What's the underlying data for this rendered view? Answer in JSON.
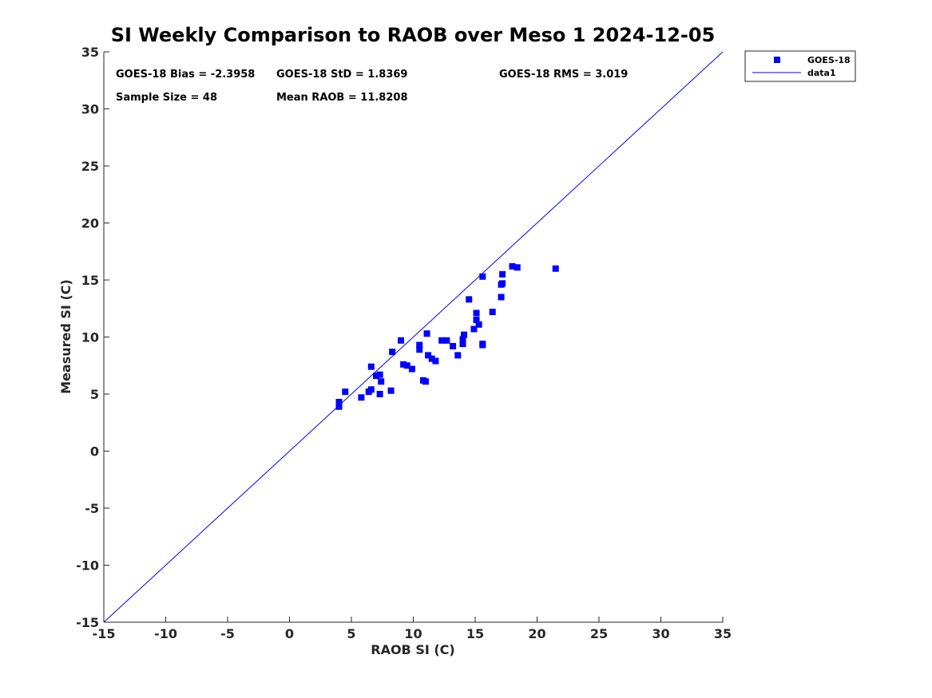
{
  "chart_data": {
    "type": "scatter",
    "title": "SI Weekly Comparison to RAOB over Meso 1 2024-12-05",
    "xlabel": "RAOB SI (C)",
    "ylabel": "Measured SI (C)",
    "xlim": [
      -15,
      35
    ],
    "ylim": [
      -15,
      35
    ],
    "xticks": [
      "-15",
      "-10",
      "-5",
      "0",
      "5",
      "10",
      "15",
      "20",
      "25",
      "30",
      "35"
    ],
    "yticks": [
      "-15",
      "-10",
      "-5",
      "0",
      "5",
      "10",
      "15",
      "20",
      "25",
      "30",
      "35"
    ],
    "grid": false,
    "legend_position": "outside top-right",
    "stats": {
      "bias": "GOES-18 Bias = -2.3958",
      "std": "GOES-18 StD = 1.8369",
      "rms": "GOES-18 RMS = 3.019",
      "sample_size": "Sample Size = 48",
      "mean_raob": "Mean RAOB = 11.8208"
    },
    "series": [
      {
        "name": "GOES-18",
        "kind": "scatter",
        "marker": "square",
        "color": "#0000ff",
        "points": [
          [
            4.0,
            4.3
          ],
          [
            4.0,
            3.9
          ],
          [
            4.5,
            5.2
          ],
          [
            5.8,
            4.7
          ],
          [
            6.4,
            5.2
          ],
          [
            6.6,
            5.4
          ],
          [
            6.6,
            7.4
          ],
          [
            7.0,
            6.6
          ],
          [
            7.3,
            6.7
          ],
          [
            7.4,
            6.1
          ],
          [
            7.3,
            5.0
          ],
          [
            8.2,
            5.3
          ],
          [
            8.3,
            8.7
          ],
          [
            9.0,
            9.7
          ],
          [
            9.2,
            7.6
          ],
          [
            9.5,
            7.5
          ],
          [
            9.9,
            7.2
          ],
          [
            10.5,
            9.3
          ],
          [
            10.5,
            8.9
          ],
          [
            10.8,
            6.2
          ],
          [
            11.0,
            6.1
          ],
          [
            11.1,
            10.3
          ],
          [
            11.2,
            8.4
          ],
          [
            11.5,
            8.1
          ],
          [
            11.8,
            7.9
          ],
          [
            12.3,
            9.7
          ],
          [
            12.7,
            9.7
          ],
          [
            13.2,
            9.2
          ],
          [
            13.6,
            8.4
          ],
          [
            14.0,
            9.8
          ],
          [
            14.0,
            9.4
          ],
          [
            14.1,
            10.2
          ],
          [
            14.5,
            13.3
          ],
          [
            14.9,
            10.7
          ],
          [
            15.1,
            12.1
          ],
          [
            15.1,
            11.5
          ],
          [
            15.3,
            11.1
          ],
          [
            15.6,
            15.3
          ],
          [
            15.6,
            9.4
          ],
          [
            15.6,
            9.3
          ],
          [
            16.4,
            12.2
          ],
          [
            17.1,
            14.6
          ],
          [
            17.2,
            15.5
          ],
          [
            17.2,
            14.7
          ],
          [
            17.1,
            13.5
          ],
          [
            18.0,
            16.2
          ],
          [
            18.4,
            16.1
          ],
          [
            21.5,
            16.0
          ]
        ]
      },
      {
        "name": "data1",
        "kind": "line",
        "color": "#0000ff",
        "x": [
          -15,
          35
        ],
        "y": [
          -15,
          35
        ]
      }
    ]
  }
}
